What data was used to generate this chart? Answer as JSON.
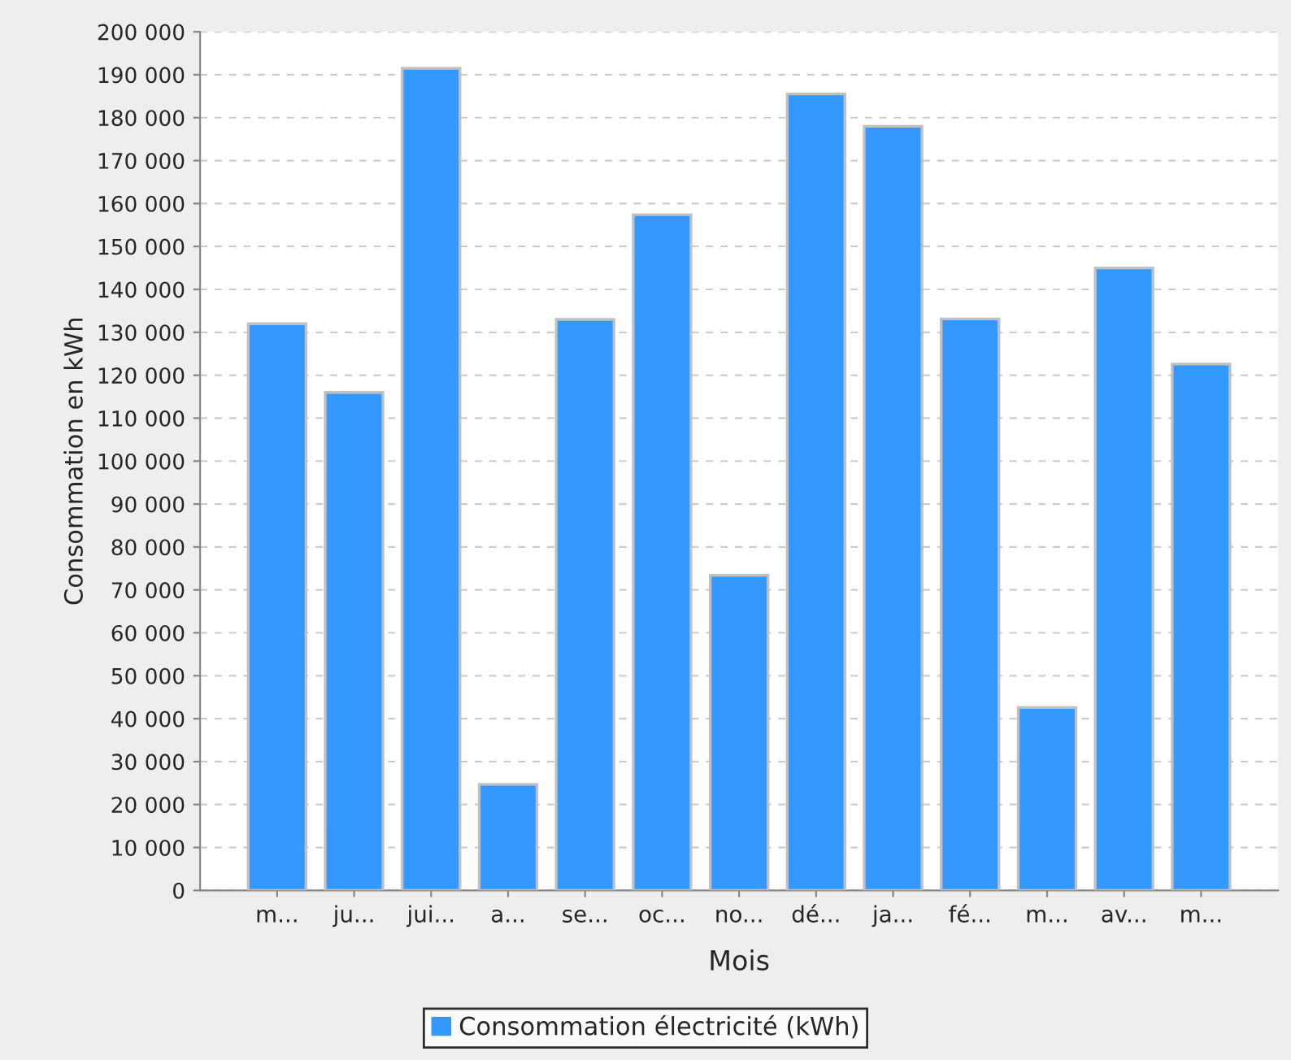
{
  "chart_data": {
    "type": "bar",
    "xlabel": "Mois",
    "ylabel": "Consommation en kWh",
    "categories": [
      "m...",
      "ju...",
      "jui...",
      "a...",
      "se...",
      "oc...",
      "no...",
      "dé...",
      "ja...",
      "fé...",
      "m...",
      "av...",
      "m..."
    ],
    "series": [
      {
        "name": "Consommation électricité (kWh)",
        "color": "#3399ff",
        "values": [
          132000,
          116000,
          191500,
          24700,
          133000,
          157400,
          73400,
          185500,
          178000,
          133100,
          42600,
          145000,
          122600
        ]
      }
    ],
    "ylim": [
      0,
      200000
    ],
    "yticks": [
      {
        "value": 0,
        "label": "0"
      },
      {
        "value": 10000,
        "label": "10 000"
      },
      {
        "value": 20000,
        "label": "20 000"
      },
      {
        "value": 30000,
        "label": "30 000"
      },
      {
        "value": 40000,
        "label": "40 000"
      },
      {
        "value": 50000,
        "label": "50 000"
      },
      {
        "value": 60000,
        "label": "60 000"
      },
      {
        "value": 70000,
        "label": "70 000"
      },
      {
        "value": 80000,
        "label": "80 000"
      },
      {
        "value": 90000,
        "label": "90 000"
      },
      {
        "value": 100000,
        "label": "100 000"
      },
      {
        "value": 110000,
        "label": "110 000"
      },
      {
        "value": 120000,
        "label": "120 000"
      },
      {
        "value": 130000,
        "label": "130 000"
      },
      {
        "value": 140000,
        "label": "140 000"
      },
      {
        "value": 150000,
        "label": "150 000"
      },
      {
        "value": 160000,
        "label": "160 000"
      },
      {
        "value": 170000,
        "label": "170 000"
      },
      {
        "value": 180000,
        "label": "180 000"
      },
      {
        "value": 190000,
        "label": "190 000"
      },
      {
        "value": 200000,
        "label": "200 000"
      }
    ],
    "grid": "y",
    "legend": "bottom"
  }
}
